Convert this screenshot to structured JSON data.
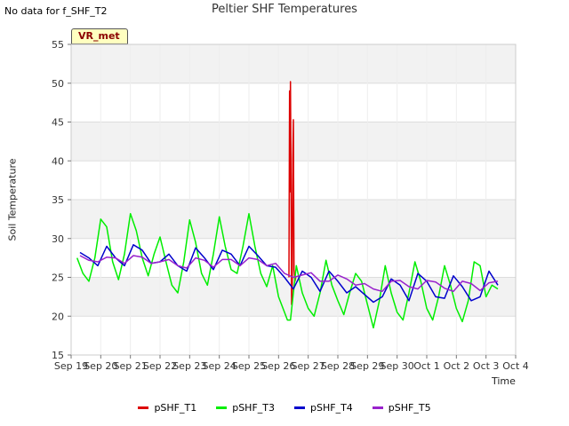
{
  "header": {
    "nodata": "No data for f_SHF_T2",
    "badge": "VR_met"
  },
  "chart_data": {
    "type": "line",
    "title": "Peltier SHF Temperatures",
    "xlabel": "Time",
    "ylabel": "Soil Temperature",
    "xlim": [
      0,
      15
    ],
    "ylim": [
      15,
      55
    ],
    "yticks": [
      15,
      20,
      25,
      30,
      35,
      40,
      45,
      50,
      55
    ],
    "xtick_labels": [
      "Sep 19",
      "Sep 20",
      "Sep 21",
      "Sep 22",
      "Sep 23",
      "Sep 24",
      "Sep 25",
      "Sep 26",
      "Sep 27",
      "Sep 28",
      "Sep 29",
      "Sep 30",
      "Oct 1",
      "Oct 2",
      "Oct 3",
      "Oct 4"
    ],
    "grid": true,
    "series": [
      {
        "name": "pSHF_T1",
        "color": "#dd0000",
        "x": [
          7.35,
          7.37,
          7.38,
          7.4,
          7.42,
          7.44,
          7.46,
          7.48,
          7.5,
          7.52,
          7.55,
          7.58
        ],
        "y": [
          25,
          49,
          36,
          50.2,
          38,
          21.5,
          24,
          40,
          45.3,
          26,
          24.5,
          25
        ]
      },
      {
        "name": "pSHF_T3",
        "color": "#00ee00",
        "x": [
          0.2,
          0.4,
          0.6,
          0.8,
          1.0,
          1.2,
          1.4,
          1.6,
          1.8,
          2.0,
          2.2,
          2.4,
          2.6,
          2.8,
          3.0,
          3.2,
          3.4,
          3.6,
          3.8,
          4.0,
          4.2,
          4.4,
          4.6,
          4.8,
          5.0,
          5.2,
          5.4,
          5.6,
          5.8,
          6.0,
          6.2,
          6.4,
          6.6,
          6.8,
          7.0,
          7.2,
          7.3,
          7.4,
          7.6,
          7.8,
          8.0,
          8.2,
          8.4,
          8.6,
          8.8,
          9.0,
          9.2,
          9.4,
          9.6,
          9.8,
          10.0,
          10.2,
          10.4,
          10.6,
          10.8,
          11.0,
          11.2,
          11.4,
          11.6,
          11.8,
          12.0,
          12.2,
          12.4,
          12.6,
          12.8,
          13.0,
          13.2,
          13.4,
          13.6,
          13.8,
          14.0,
          14.2,
          14.4
        ],
        "y": [
          27.5,
          25.5,
          24.5,
          27.5,
          32.5,
          31.5,
          27,
          24.7,
          28,
          33.2,
          31,
          27.5,
          25.2,
          28,
          30.2,
          27,
          24,
          23,
          27,
          32.4,
          29.5,
          25.5,
          24,
          28,
          32.8,
          29,
          26,
          25.5,
          29,
          33.2,
          29,
          25.5,
          23.8,
          26.5,
          22.5,
          20.5,
          19.5,
          19.5,
          26.5,
          23,
          21,
          20,
          23,
          27.2,
          24,
          22,
          20.2,
          23,
          25.5,
          24.5,
          21.5,
          18.5,
          22,
          26.5,
          23,
          20.5,
          19.5,
          23,
          27,
          24.5,
          21,
          19.5,
          22.5,
          26.5,
          24,
          21,
          19.3,
          22,
          27,
          26.5,
          22.5,
          24,
          23.5
        ]
      },
      {
        "name": "pSHF_T4",
        "color": "#0000cc",
        "x": [
          0.3,
          0.6,
          0.9,
          1.2,
          1.5,
          1.8,
          2.1,
          2.4,
          2.7,
          3.0,
          3.3,
          3.6,
          3.9,
          4.2,
          4.5,
          4.8,
          5.1,
          5.4,
          5.7,
          6.0,
          6.3,
          6.6,
          6.9,
          7.2,
          7.5,
          7.8,
          8.1,
          8.4,
          8.7,
          9.0,
          9.3,
          9.6,
          9.9,
          10.2,
          10.5,
          10.8,
          11.1,
          11.4,
          11.7,
          12.0,
          12.3,
          12.6,
          12.9,
          13.2,
          13.5,
          13.8,
          14.1,
          14.4
        ],
        "y": [
          28.2,
          27.5,
          26.5,
          29,
          27.5,
          26.5,
          29.2,
          28.5,
          26.8,
          27,
          28,
          26.5,
          25.8,
          28.8,
          27.5,
          26,
          28.5,
          28,
          26.5,
          29,
          27.8,
          26.5,
          26.3,
          25,
          23.5,
          25.8,
          25,
          23.2,
          25.8,
          24.5,
          23,
          23.8,
          22.8,
          21.8,
          22.5,
          24.8,
          24,
          22,
          25.5,
          24.5,
          22.5,
          22.3,
          25.2,
          23.8,
          22,
          22.5,
          25.8,
          24
        ]
      },
      {
        "name": "pSHF_T5",
        "color": "#9922cc",
        "x": [
          0.3,
          0.6,
          0.9,
          1.2,
          1.5,
          1.8,
          2.1,
          2.4,
          2.7,
          3.0,
          3.3,
          3.6,
          3.9,
          4.2,
          4.5,
          4.8,
          5.1,
          5.4,
          5.7,
          6.0,
          6.3,
          6.6,
          6.9,
          7.2,
          7.5,
          7.8,
          8.1,
          8.4,
          8.7,
          9.0,
          9.3,
          9.6,
          9.9,
          10.2,
          10.5,
          10.8,
          11.1,
          11.4,
          11.7,
          12.0,
          12.3,
          12.6,
          12.9,
          13.2,
          13.5,
          13.8,
          14.1,
          14.4
        ],
        "y": [
          27.8,
          27.2,
          27,
          27.6,
          27.5,
          26.8,
          27.8,
          27.6,
          26.8,
          27,
          27.3,
          26.5,
          26.2,
          27.5,
          27.2,
          26.3,
          27.3,
          27.3,
          26.5,
          27.5,
          27.3,
          26.5,
          26.8,
          25.5,
          25,
          25.3,
          25.6,
          24.5,
          24.5,
          25.3,
          24.8,
          24,
          24.2,
          23.5,
          23.2,
          24.5,
          24.6,
          23.8,
          23.5,
          24.6,
          24.4,
          23.6,
          23.2,
          24.5,
          24.2,
          23.3,
          24.3,
          24.5
        ]
      }
    ]
  }
}
